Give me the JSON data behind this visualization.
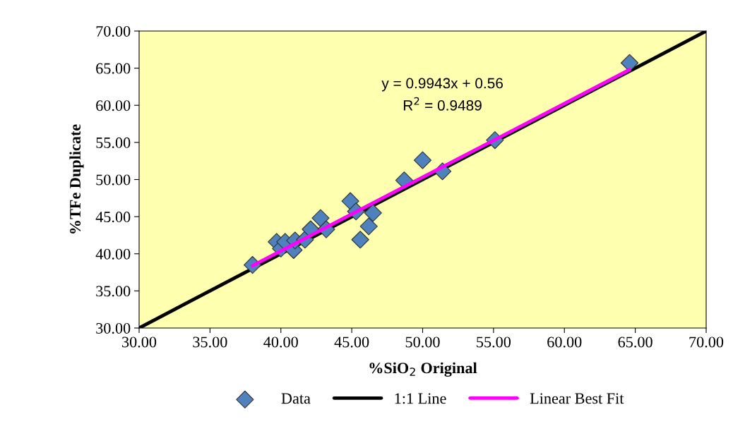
{
  "chart_data": {
    "type": "scatter",
    "xlabel": "%SiO$_{2}$ Original",
    "ylabel": "%TFe Duplicate",
    "annotations": [
      "y = 0.9943x + 0.56",
      "R$^{2}$ = 0.9489"
    ],
    "series": [
      {
        "name": "Data",
        "color": "#4f81bd",
        "marker": "diamond",
        "x": [
          38.0,
          39.7,
          40.0,
          40.3,
          40.9,
          41.0,
          41.7,
          42.1,
          42.8,
          43.2,
          44.9,
          45.3,
          45.6,
          46.2,
          46.5,
          48.7,
          50.0,
          51.4,
          55.1,
          64.6
        ],
        "values": [
          38.5,
          41.6,
          40.7,
          41.6,
          40.5,
          41.8,
          41.9,
          43.3,
          44.8,
          43.3,
          47.1,
          45.7,
          41.9,
          43.7,
          45.5,
          49.9,
          52.6,
          51.1,
          55.3,
          65.7
        ]
      },
      {
        "name": "1:1 Line",
        "type": "line",
        "color": "#000000",
        "x": [
          30,
          70
        ],
        "values": [
          30,
          70
        ]
      },
      {
        "name": "Linear Best Fit",
        "type": "line",
        "color": "#ff00ff",
        "x": [
          38.0,
          64.6
        ],
        "values": [
          38.4,
          64.8
        ]
      }
    ],
    "xlim": [
      30,
      70
    ],
    "ylim": [
      30,
      70
    ],
    "xticks": [
      {
        "value": 30,
        "label": "30.00"
      },
      {
        "value": 35,
        "label": "35.00"
      },
      {
        "value": 40,
        "label": "40.00"
      },
      {
        "value": 45,
        "label": "45.00"
      },
      {
        "value": 50,
        "label": "50.00"
      },
      {
        "value": 55,
        "label": "55.00"
      },
      {
        "value": 60,
        "label": "60.00"
      },
      {
        "value": 65,
        "label": "65.00"
      },
      {
        "value": 70,
        "label": "70.00"
      }
    ],
    "yticks": [
      {
        "value": 30,
        "label": "30.00"
      },
      {
        "value": 35,
        "label": "35.00"
      },
      {
        "value": 40,
        "label": "40.00"
      },
      {
        "value": 45,
        "label": "45.00"
      },
      {
        "value": 50,
        "label": "50.00"
      },
      {
        "value": 55,
        "label": "55.00"
      },
      {
        "value": 60,
        "label": "60.00"
      },
      {
        "value": 65,
        "label": "65.00"
      },
      {
        "value": 70,
        "label": "70.00"
      }
    ],
    "grid": false,
    "legend": "bottom"
  }
}
